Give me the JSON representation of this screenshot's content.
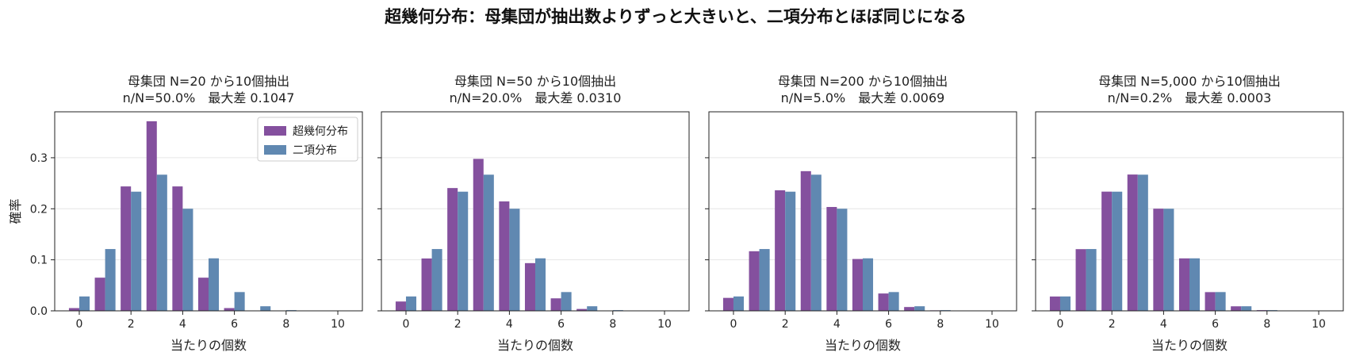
{
  "figure": {
    "title": "超幾何分布：母集団が抽出数よりずっと大きいと、二項分布とほぼ同じになる"
  },
  "colors": {
    "hypergeometric": "#84509e",
    "binomial": "#6088b1",
    "grid": "#e6e6e6"
  },
  "chart_data": [
    {
      "type": "bar",
      "title_line1": "母集団 N=20 から10個抽出",
      "title_line2": "n/N=50.0%　最大差 0.1047",
      "xlabel": "当たりの個数",
      "ylabel": "確率",
      "x": [
        0,
        1,
        2,
        3,
        4,
        5,
        6,
        7,
        8,
        9,
        10
      ],
      "xticks": [
        "0",
        "2",
        "4",
        "6",
        "8",
        "10"
      ],
      "yticks": [
        "0.0",
        "0.1",
        "0.2",
        "0.3"
      ],
      "ylim": [
        0,
        0.39
      ],
      "legend": {
        "position": "upper-right",
        "entries": [
          "超幾何分布",
          "二項分布"
        ]
      },
      "series": [
        {
          "name": "超幾何分布",
          "values": [
            0.0054,
            0.065,
            0.2438,
            0.3715,
            0.2438,
            0.065,
            0.0054,
            0,
            0,
            0,
            0
          ]
        },
        {
          "name": "二項分布",
          "values": [
            0.0282,
            0.1211,
            0.2335,
            0.2668,
            0.2001,
            0.1029,
            0.0368,
            0.009,
            0.0014,
            0.0001,
            0.0
          ]
        }
      ]
    },
    {
      "type": "bar",
      "title_line1": "母集団 N=50 から10個抽出",
      "title_line2": "n/N=20.0%　最大差 0.0310",
      "xlabel": "当たりの個数",
      "x": [
        0,
        1,
        2,
        3,
        4,
        5,
        6,
        7,
        8,
        9,
        10
      ],
      "xticks": [
        "0",
        "2",
        "4",
        "6",
        "8",
        "10"
      ],
      "ylim": [
        0,
        0.39
      ],
      "series": [
        {
          "name": "超幾何分布",
          "values": [
            0.0183,
            0.1026,
            0.2406,
            0.2978,
            0.2144,
            0.0935,
            0.0245,
            0.0037,
            0.0003,
            0.0,
            0.0
          ]
        },
        {
          "name": "二項分布",
          "values": [
            0.0282,
            0.1211,
            0.2335,
            0.2668,
            0.2001,
            0.1029,
            0.0368,
            0.009,
            0.0014,
            0.0001,
            0.0
          ]
        }
      ]
    },
    {
      "type": "bar",
      "title_line1": "母集団 N=200 から10個抽出",
      "title_line2": "n/N=5.0%　最大差 0.0069",
      "xlabel": "当たりの個数",
      "x": [
        0,
        1,
        2,
        3,
        4,
        5,
        6,
        7,
        8,
        9,
        10
      ],
      "xticks": [
        "0",
        "2",
        "4",
        "6",
        "8",
        "10"
      ],
      "ylim": [
        0,
        0.39
      ],
      "series": [
        {
          "name": "超幾何分布",
          "values": [
            0.0254,
            0.1168,
            0.2362,
            0.2737,
            0.2035,
            0.1016,
            0.034,
            0.0075,
            0.001,
            0.0001,
            0.0
          ]
        },
        {
          "name": "二項分布",
          "values": [
            0.0282,
            0.1211,
            0.2335,
            0.2668,
            0.2001,
            0.1029,
            0.0368,
            0.009,
            0.0014,
            0.0001,
            0.0
          ]
        }
      ]
    },
    {
      "type": "bar",
      "title_line1": "母集団 N=5,000 から10個抽出",
      "title_line2": "n/N=0.2%　最大差 0.0003",
      "xlabel": "当たりの個数",
      "x": [
        0,
        1,
        2,
        3,
        4,
        5,
        6,
        7,
        8,
        9,
        10
      ],
      "xticks": [
        "0",
        "2",
        "4",
        "6",
        "8",
        "10"
      ],
      "ylim": [
        0,
        0.39
      ],
      "series": [
        {
          "name": "超幾何分布",
          "values": [
            0.0281,
            0.1209,
            0.2336,
            0.2671,
            0.2002,
            0.1028,
            0.0367,
            0.0089,
            0.0014,
            0.0001,
            0.0
          ]
        },
        {
          "name": "二項分布",
          "values": [
            0.0282,
            0.1211,
            0.2335,
            0.2668,
            0.2001,
            0.1029,
            0.0368,
            0.009,
            0.0014,
            0.0001,
            0.0
          ]
        }
      ]
    }
  ]
}
